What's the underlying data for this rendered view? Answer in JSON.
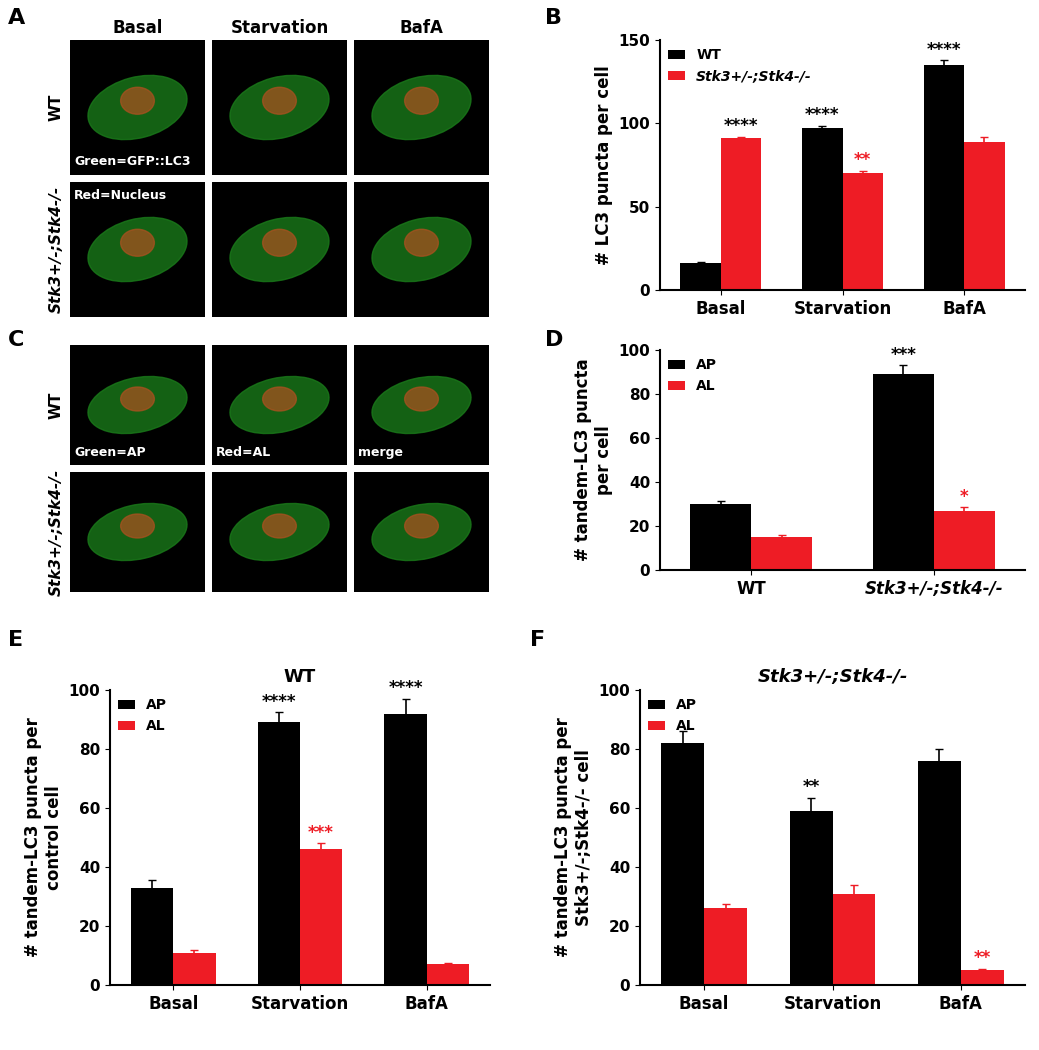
{
  "image_panels": [
    {
      "panel": "A",
      "columns": [
        "Basal",
        "Starvation",
        "BafA"
      ],
      "rows": [
        "WT",
        "Stk3+/-;Stk4-/-"
      ],
      "cell_texts": [
        [
          [
            "Green=GFP::LC3"
          ],
          [],
          []
        ],
        [
          [
            "Red=Nucleus"
          ],
          [],
          []
        ]
      ]
    },
    {
      "panel": "C",
      "columns": [],
      "rows": [
        "WT",
        "Stk3+/-;Stk4-/-"
      ],
      "cell_texts": [
        [
          [
            "Green=AP"
          ],
          [
            "Red=AL"
          ],
          [
            "merge"
          ]
        ],
        [
          [],
          [],
          []
        ]
      ]
    }
  ],
  "chart_data": [
    {
      "panel": "B",
      "type": "bar",
      "ylabel": "# LC3 puncta per cell",
      "categories": [
        "Basal",
        "Starvation",
        "BafA"
      ],
      "series": [
        {
          "name": "WT",
          "color": "#000000",
          "values": [
            16,
            97,
            135
          ],
          "errors": [
            1,
            1.5,
            3
          ],
          "annotations": [
            null,
            {
              "text": "****",
              "color": "#000000"
            },
            {
              "text": "****",
              "color": "#000000"
            }
          ]
        },
        {
          "name": "Stk3+/-;Stk4-/-",
          "color": "#ee1c25",
          "values": [
            91,
            70,
            89
          ],
          "errors": [
            1,
            1.5,
            3
          ],
          "annotations": [
            {
              "text": "****",
              "color": "#000000"
            },
            {
              "text": "**",
              "color": "#ee1c25"
            },
            null
          ]
        }
      ],
      "ylim": [
        0,
        150
      ],
      "yticks": [
        0,
        50,
        100,
        150
      ],
      "legend": "upper left"
    },
    {
      "panel": "D",
      "type": "bar",
      "ylabel": "# tandem-LC3 puncta\nper cell",
      "categories": [
        "WT",
        "Stk3+/-;Stk4-/-"
      ],
      "series": [
        {
          "name": "AP",
          "color": "#000000",
          "values": [
            30,
            89
          ],
          "errors": [
            1.5,
            4
          ],
          "annotations": [
            null,
            {
              "text": "***",
              "color": "#000000"
            }
          ]
        },
        {
          "name": "AL",
          "color": "#ee1c25",
          "values": [
            15,
            27
          ],
          "errors": [
            1,
            1.5
          ],
          "annotations": [
            null,
            {
              "text": "*",
              "color": "#ee1c25"
            }
          ]
        }
      ],
      "ylim": [
        0,
        100
      ],
      "yticks": [
        0,
        20,
        40,
        60,
        80,
        100
      ],
      "legend": "upper left"
    },
    {
      "panel": "E",
      "type": "bar",
      "title": "WT",
      "ylabel": "# tandem-LC3 puncta per\ncontrol cell",
      "categories": [
        "Basal",
        "Starvation",
        "BafA"
      ],
      "series": [
        {
          "name": "AP",
          "color": "#000000",
          "values": [
            33,
            89,
            92
          ],
          "errors": [
            2.5,
            3.5,
            5
          ],
          "annotations": [
            null,
            {
              "text": "****",
              "color": "#000000"
            },
            {
              "text": "****",
              "color": "#000000"
            }
          ]
        },
        {
          "name": "AL",
          "color": "#ee1c25",
          "values": [
            11,
            46,
            7
          ],
          "errors": [
            1,
            2,
            0.5
          ],
          "annotations": [
            null,
            {
              "text": "***",
              "color": "#ee1c25"
            },
            null
          ]
        }
      ],
      "ylim": [
        0,
        100
      ],
      "yticks": [
        0,
        20,
        40,
        60,
        80,
        100
      ],
      "legend": "upper left"
    },
    {
      "panel": "F",
      "type": "bar",
      "title": "Stk3+/-;Stk4-/-",
      "ylabel": "# tandem-LC3 puncta per\nStk3+/-;Stk4-/- cell",
      "categories": [
        "Basal",
        "Starvation",
        "BafA"
      ],
      "series": [
        {
          "name": "AP",
          "color": "#000000",
          "values": [
            82,
            59,
            76
          ],
          "errors": [
            4,
            4.5,
            4
          ],
          "annotations": [
            null,
            {
              "text": "**",
              "color": "#000000"
            },
            null
          ]
        },
        {
          "name": "AL",
          "color": "#ee1c25",
          "values": [
            26,
            31,
            5
          ],
          "errors": [
            1.5,
            3,
            0.5
          ],
          "annotations": [
            null,
            null,
            {
              "text": "**",
              "color": "#ee1c25"
            }
          ]
        }
      ],
      "ylim": [
        0,
        100
      ],
      "yticks": [
        0,
        20,
        40,
        60,
        80,
        100
      ],
      "legend": "upper left"
    }
  ]
}
